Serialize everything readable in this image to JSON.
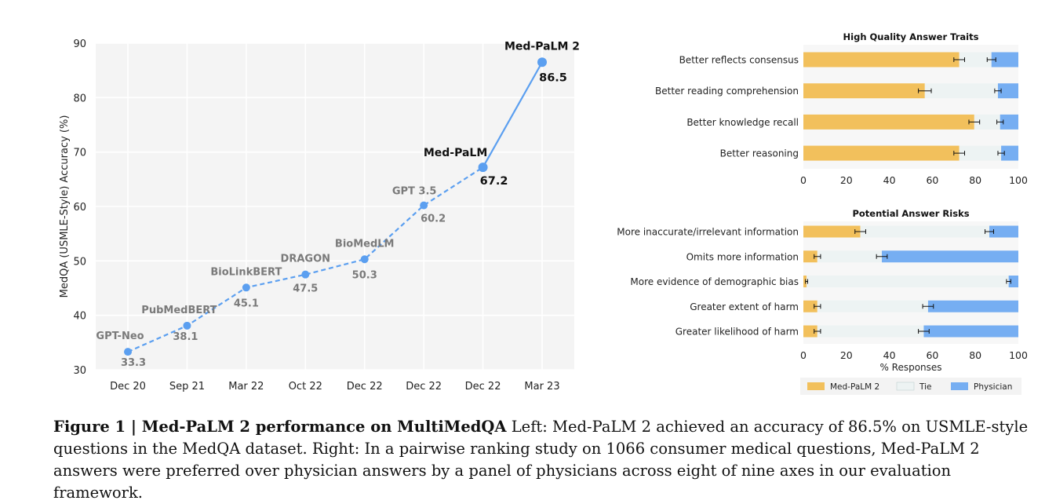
{
  "caption": {
    "label": "Figure 1 | Med-PaLM 2 performance on MultiMedQA",
    "text": " Left: Med-PaLM 2 achieved an accuracy of 86.5% on USMLE-style questions in the MedQA dataset. Right: In a pairwise ranking study on 1066 consumer medical questions, Med-PaLM 2 answers were preferred over physician answers by a panel of physicians across eight of nine axes in our evaluation framework."
  },
  "colors": {
    "medpalm2": "#f2c05c",
    "tie": "#edf3f3",
    "physician": "#76aef2",
    "line": "#5b9ff0",
    "muted_label": "#7a7a7a",
    "highlight_label": "#111111",
    "plot_bg": "#f4f4f4",
    "panel_bg": "#f7f7f7"
  },
  "chart_data": [
    {
      "type": "line",
      "title": "",
      "xlabel": "",
      "ylabel": "MedQA (USMLE-Style) Accuracy (%)",
      "ylim": [
        30,
        90
      ],
      "yticks": [
        30,
        40,
        50,
        60,
        70,
        80,
        90
      ],
      "grid": true,
      "x": [
        "Dec 20",
        "Sep 21",
        "Mar 22",
        "Oct 22",
        "Dec 22",
        "Dec 22",
        "Dec 22",
        "Mar 23"
      ],
      "series": [
        {
          "points": [
            {
              "model": "GPT-Neo",
              "x": "Dec 20",
              "y": 33.3,
              "label": "33.3",
              "highlight": false
            },
            {
              "model": "PubMedBERT",
              "x": "Sep 21",
              "y": 38.1,
              "label": "38.1",
              "highlight": false
            },
            {
              "model": "BioLinkBERT",
              "x": "Mar 22",
              "y": 45.1,
              "label": "45.1",
              "highlight": false
            },
            {
              "model": "DRAGON",
              "x": "Oct 22",
              "y": 47.5,
              "label": "47.5",
              "highlight": false
            },
            {
              "model": "BioMedLM",
              "x": "Dec 22",
              "y": 50.3,
              "label": "50.3",
              "highlight": false
            },
            {
              "model": "GPT 3.5",
              "x": "Dec 22",
              "y": 60.2,
              "label": "60.2",
              "highlight": false
            },
            {
              "model": "Med-PaLM",
              "x": "Dec 22",
              "y": 67.2,
              "label": "67.2",
              "highlight": true
            },
            {
              "model": "Med-PaLM 2",
              "x": "Mar 23",
              "y": 86.5,
              "label": "86.5",
              "highlight": true
            }
          ]
        }
      ]
    },
    {
      "type": "bar",
      "orientation": "horizontal",
      "stacked": true,
      "title": "High Quality Answer Traits",
      "xlabel": "",
      "xlim": [
        0,
        100
      ],
      "xticks": [
        0,
        20,
        40,
        60,
        80,
        100
      ],
      "categories": [
        "Better reflects consensus",
        "Better reading comprehension",
        "Better knowledge recall",
        "Better reasoning"
      ],
      "series": [
        {
          "name": "Med-PaLM 2",
          "values": [
            72.5,
            56.5,
            79.5,
            72.5
          ],
          "error": [
            2.5,
            3,
            2.5,
            2.5
          ]
        },
        {
          "name": "Tie",
          "values": [
            15,
            34,
            12,
            19.5
          ]
        },
        {
          "name": "Physician",
          "values": [
            12.5,
            9.5,
            8.5,
            8
          ],
          "error": [
            2,
            1.5,
            1.5,
            1.5
          ]
        }
      ]
    },
    {
      "type": "bar",
      "orientation": "horizontal",
      "stacked": true,
      "title": "Potential Answer Risks",
      "xlabel": "% Responses",
      "xlim": [
        0,
        100
      ],
      "xticks": [
        0,
        20,
        40,
        60,
        80,
        100
      ],
      "categories": [
        "More inaccurate/irrelevant information",
        "Omits more information",
        "More evidence of demographic bias",
        "Greater extent of harm",
        "Greater likelihood of harm"
      ],
      "series": [
        {
          "name": "Med-PaLM 2",
          "values": [
            26.5,
            6.5,
            1.5,
            6.5,
            6.5
          ],
          "error": [
            2.5,
            1.5,
            0.5,
            1.5,
            1.5
          ]
        },
        {
          "name": "Tie",
          "values": [
            60,
            30,
            94,
            51.5,
            49.5
          ]
        },
        {
          "name": "Physician",
          "values": [
            13.5,
            63.5,
            4.5,
            42,
            44
          ],
          "error": [
            2,
            2.5,
            1,
            2.5,
            2.5
          ]
        }
      ]
    }
  ],
  "legend": {
    "placement": "bottom",
    "items": [
      "Med-PaLM 2",
      "Tie",
      "Physician"
    ]
  }
}
